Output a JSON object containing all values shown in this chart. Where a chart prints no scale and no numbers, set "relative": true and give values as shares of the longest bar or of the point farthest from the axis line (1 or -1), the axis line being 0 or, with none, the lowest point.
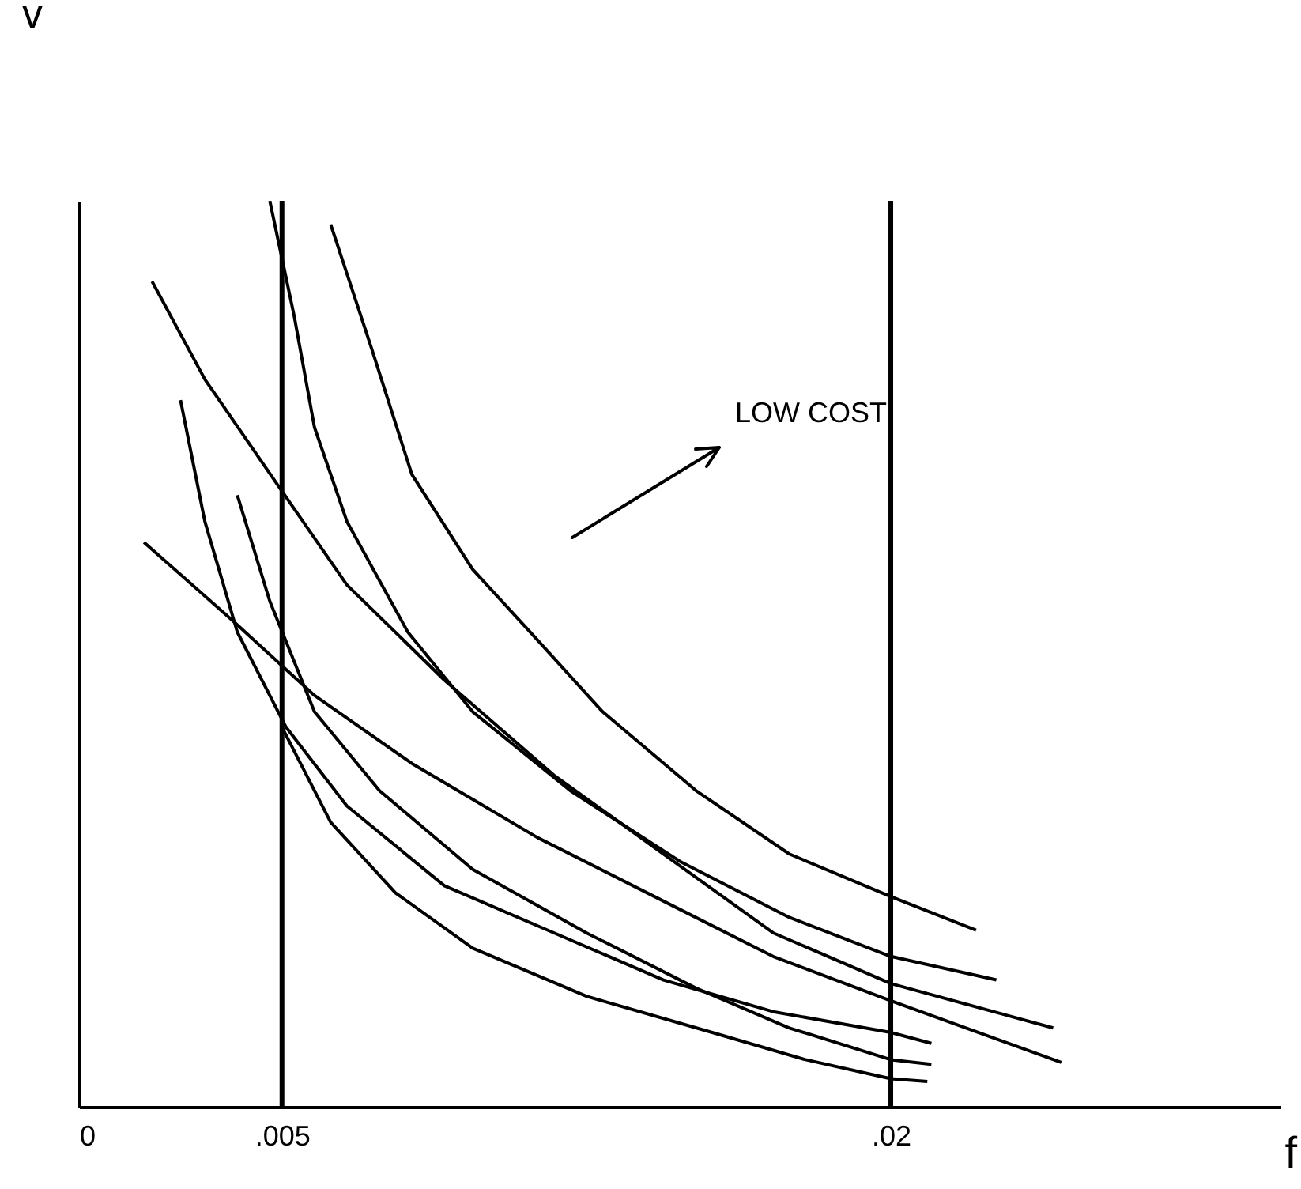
{
  "chart_data": {
    "type": "line",
    "relative": true,
    "ylabel": "v",
    "xlabel": "f",
    "annotations": [
      "LOW COST"
    ],
    "xlim": [
      0,
      0.0296
    ],
    "xticks": [
      0,
      {
        "value": 0.005,
        "label": ".005"
      },
      {
        "value": 0.02,
        "label": ".02"
      }
    ],
    "legend": false,
    "marker": "none",
    "line_style": "solid",
    "ref_lines": [
      {
        "axis": "x",
        "value": 0.005,
        "color": "#000000"
      },
      {
        "axis": "x",
        "value": 0.02,
        "color": "#000000"
      }
    ],
    "series": [
      {
        "color": "#000000",
        "x": [
          0.0062,
          0.0072,
          0.0082,
          0.0097,
          0.0113,
          0.0129,
          0.0152,
          0.0175,
          0.02,
          0.0221
        ],
        "values": [
          0.974,
          0.838,
          0.698,
          0.593,
          0.515,
          0.436,
          0.349,
          0.279,
          0.232,
          0.195
        ]
      },
      {
        "color": "#000000",
        "x": [
          0.0047,
          0.0053,
          0.0058,
          0.0066,
          0.0081,
          0.0097,
          0.0121,
          0.0148,
          0.0175,
          0.02,
          0.0226
        ],
        "values": [
          1,
          0.873,
          0.75,
          0.646,
          0.524,
          0.436,
          0.349,
          0.271,
          0.209,
          0.166,
          0.14
        ]
      },
      {
        "color": "#000000",
        "x": [
          0.0018,
          0.0031,
          0.0049,
          0.0066,
          0.009,
          0.0117,
          0.0144,
          0.0171,
          0.02,
          0.024
        ],
        "values": [
          0.911,
          0.803,
          0.686,
          0.576,
          0.471,
          0.366,
          0.279,
          0.192,
          0.136,
          0.087
        ]
      },
      {
        "color": "#000000",
        "x": [
          0.0016,
          0.0038,
          0.0058,
          0.0082,
          0.0113,
          0.0144,
          0.0171,
          0.02,
          0.0242
        ],
        "values": [
          0.623,
          0.536,
          0.454,
          0.379,
          0.297,
          0.227,
          0.166,
          0.117,
          0.049
        ]
      },
      {
        "color": "#000000",
        "x": [
          0.0025,
          0.0031,
          0.0039,
          0.0051,
          0.0066,
          0.009,
          0.0117,
          0.0144,
          0.0171,
          0.02,
          0.021
        ],
        "values": [
          0.78,
          0.646,
          0.524,
          0.419,
          0.332,
          0.244,
          0.192,
          0.14,
          0.105,
          0.082,
          0.07
        ]
      },
      {
        "color": "#000000",
        "x": [
          0.0039,
          0.0047,
          0.0058,
          0.0074,
          0.0097,
          0.0125,
          0.0152,
          0.0175,
          0.02,
          0.021
        ],
        "values": [
          0.675,
          0.558,
          0.436,
          0.349,
          0.262,
          0.192,
          0.131,
          0.087,
          0.052,
          0.047
        ]
      },
      {
        "color": "#000000",
        "x": [
          0.005,
          0.0062,
          0.0078,
          0.0097,
          0.0125,
          0.0156,
          0.0179,
          0.02,
          0.0209
        ],
        "values": [
          0.419,
          0.314,
          0.236,
          0.175,
          0.122,
          0.082,
          0.052,
          0.031,
          0.028
        ]
      }
    ]
  }
}
